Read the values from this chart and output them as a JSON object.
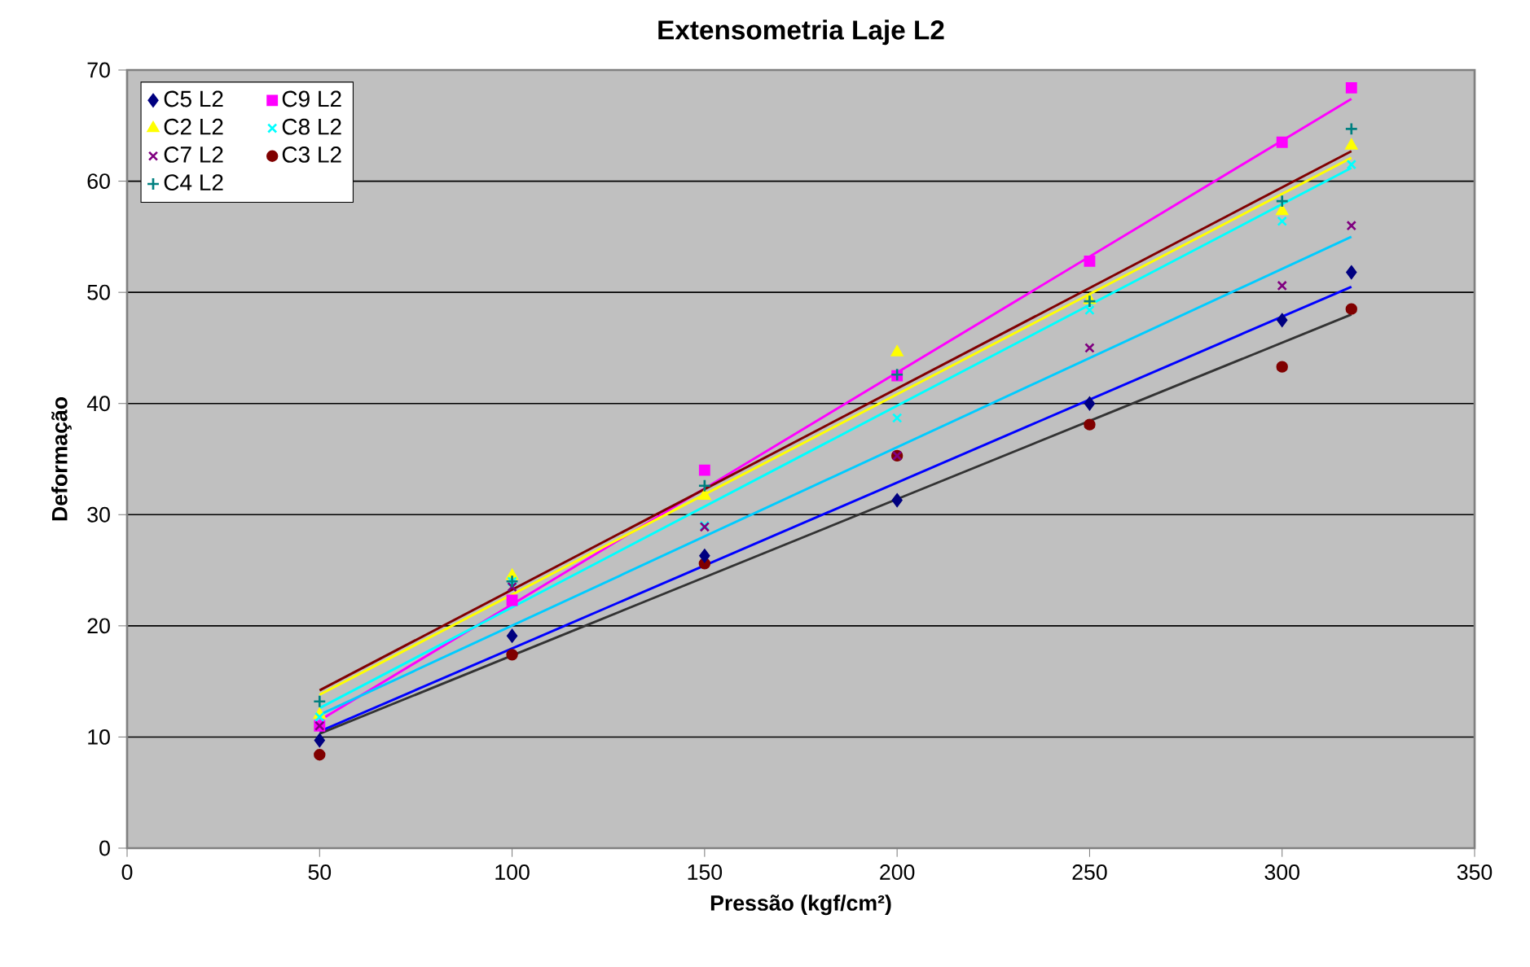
{
  "chart_data": {
    "type": "scatter",
    "title": "Extensometria Laje L2",
    "xlabel": "Pressão (kgf/cm²)",
    "ylabel": "Deformação",
    "xlim": [
      0,
      350
    ],
    "xticks": [
      0,
      50,
      100,
      150,
      200,
      250,
      300,
      350
    ],
    "ylim": [
      0,
      70
    ],
    "yticks": [
      0,
      10,
      20,
      30,
      40,
      50,
      60,
      70
    ],
    "grid": "y",
    "legend": "top left",
    "series": [
      {
        "name": "C5 L2",
        "color": "#000080",
        "marker": "diamond",
        "x": [
          50,
          100,
          150,
          200,
          250,
          300,
          318
        ],
        "values": [
          9.7,
          19.1,
          26.3,
          31.3,
          40.0,
          47.5,
          51.8
        ]
      },
      {
        "name": "C9 L2",
        "color": "#ff00ff",
        "marker": "square",
        "x": [
          50,
          100,
          150,
          200,
          250,
          300,
          318
        ],
        "values": [
          11.0,
          22.3,
          34.0,
          42.5,
          52.8,
          63.5,
          68.4
        ]
      },
      {
        "name": "C2 L2",
        "color": "#ffff00",
        "marker": "triangle",
        "x": [
          50,
          100,
          150,
          200,
          250,
          300,
          318
        ],
        "values": [
          12.0,
          24.5,
          31.7,
          44.6,
          49.3,
          57.3,
          63.2
        ]
      },
      {
        "name": "C8 L2",
        "color": "#00ffff",
        "marker": "cross",
        "x": [
          50,
          100,
          150,
          200,
          250,
          300,
          318
        ],
        "values": [
          11.8,
          24.0,
          29.0,
          38.7,
          48.4,
          56.4,
          61.5
        ]
      },
      {
        "name": "C7 L2",
        "color": "#800080",
        "marker": "cross",
        "x": [
          50,
          100,
          150,
          200,
          250,
          300,
          318
        ],
        "values": [
          11.0,
          23.5,
          28.9,
          35.3,
          45.0,
          50.6,
          56.0
        ]
      },
      {
        "name": "C3 L2",
        "color": "#800000",
        "marker": "circle",
        "x": [
          50,
          100,
          150,
          200,
          250,
          300,
          318
        ],
        "values": [
          8.4,
          17.4,
          25.6,
          35.3,
          38.1,
          43.3,
          48.5
        ]
      },
      {
        "name": "C4 L2",
        "color": "#008080",
        "marker": "plus",
        "x": [
          50,
          100,
          150,
          200,
          250,
          300,
          318
        ],
        "values": [
          13.2,
          24.0,
          32.6,
          42.6,
          49.2,
          58.2,
          64.7
        ]
      },
      {
        "type": "line",
        "color": "#0000ff",
        "x": [
          50,
          318
        ],
        "values": [
          10.5,
          50.5
        ]
      },
      {
        "type": "line",
        "color": "#ff00ff",
        "x": [
          50,
          318
        ],
        "values": [
          11.5,
          67.4
        ]
      },
      {
        "type": "line",
        "color": "#ffff00",
        "x": [
          50,
          318
        ],
        "values": [
          13.8,
          62.1
        ]
      },
      {
        "type": "line",
        "color": "#00ffff",
        "x": [
          50,
          318
        ],
        "values": [
          12.6,
          61.2
        ]
      },
      {
        "type": "line",
        "color": "#00ccff",
        "x": [
          50,
          318
        ],
        "values": [
          12.0,
          55.0
        ]
      },
      {
        "type": "line",
        "color": "#333333",
        "x": [
          50,
          318
        ],
        "values": [
          10.3,
          48.0
        ]
      },
      {
        "type": "line",
        "color": "#800000",
        "x": [
          50,
          318
        ],
        "values": [
          14.2,
          62.7
        ]
      }
    ]
  }
}
